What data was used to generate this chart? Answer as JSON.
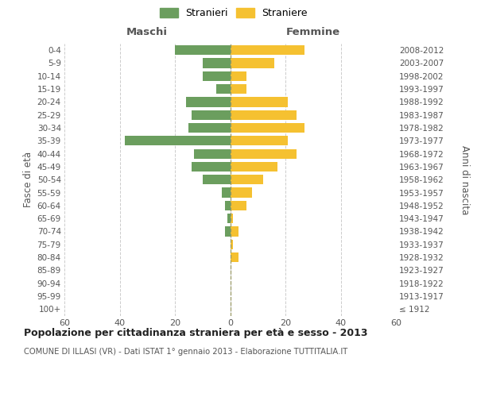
{
  "age_groups": [
    "100+",
    "95-99",
    "90-94",
    "85-89",
    "80-84",
    "75-79",
    "70-74",
    "65-69",
    "60-64",
    "55-59",
    "50-54",
    "45-49",
    "40-44",
    "35-39",
    "30-34",
    "25-29",
    "20-24",
    "15-19",
    "10-14",
    "5-9",
    "0-4"
  ],
  "birth_years": [
    "≤ 1912",
    "1913-1917",
    "1918-1922",
    "1923-1927",
    "1928-1932",
    "1933-1937",
    "1938-1942",
    "1943-1947",
    "1948-1952",
    "1953-1957",
    "1958-1962",
    "1963-1967",
    "1968-1972",
    "1973-1977",
    "1978-1982",
    "1983-1987",
    "1988-1992",
    "1993-1997",
    "1998-2002",
    "2003-2007",
    "2008-2012"
  ],
  "maschi": [
    0,
    0,
    0,
    0,
    0,
    0,
    2,
    1,
    2,
    3,
    10,
    14,
    13,
    38,
    15,
    14,
    16,
    5,
    10,
    10,
    20
  ],
  "femmine": [
    0,
    0,
    0,
    0,
    3,
    1,
    3,
    1,
    6,
    8,
    12,
    17,
    24,
    21,
    27,
    24,
    21,
    6,
    6,
    16,
    27
  ],
  "maschi_color": "#6b9e5e",
  "femmine_color": "#f5c131",
  "background_color": "#ffffff",
  "grid_color": "#cccccc",
  "title": "Popolazione per cittadinanza straniera per età e sesso - 2013",
  "subtitle": "COMUNE DI ILLASI (VR) - Dati ISTAT 1° gennaio 2013 - Elaborazione TUTTITALIA.IT",
  "ylabel_left": "Fasce di età",
  "ylabel_right": "Anni di nascita",
  "xlabel_maschi": "Maschi",
  "xlabel_femmine": "Femmine",
  "legend_maschi": "Stranieri",
  "legend_femmine": "Straniere",
  "xlim": 60,
  "bar_height": 0.75
}
